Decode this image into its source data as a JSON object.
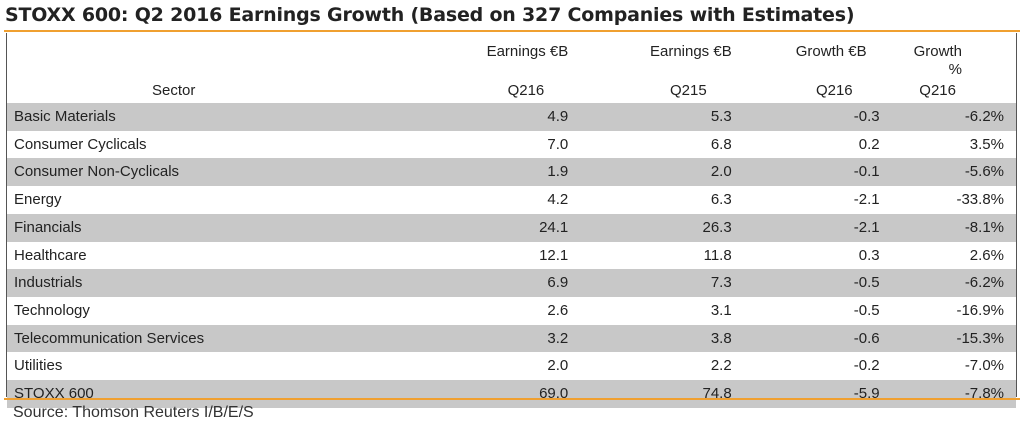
{
  "title": "STOXX 600: Q2 2016 Earnings Growth (Based on 327 Companies with Estimates)",
  "source": "Source: Thomson Reuters I/B/E/S",
  "colors": {
    "accent": "#f0a030",
    "row_shade": "#c8c8c8"
  },
  "chart_data": {
    "type": "table",
    "title": "STOXX 600: Q2 2016 Earnings Growth (Based on 327 Companies with Estimates)",
    "headers": {
      "sector": "Sector",
      "col1_line1": "Earnings €B",
      "col1_line2": "Q216",
      "col2_line1": "Earnings €B",
      "col2_line2": "Q215",
      "col3_line1": "Growth €B",
      "col3_line2": "Q216",
      "col4_line1": "Growth %",
      "col4_line2": "Q216"
    },
    "rows": [
      {
        "sector": "Basic Materials",
        "earnings_q216": "4.9",
        "earnings_q215": "5.3",
        "growth_b": "-0.3",
        "growth_pct": "-6.2%"
      },
      {
        "sector": "Consumer Cyclicals",
        "earnings_q216": "7.0",
        "earnings_q215": "6.8",
        "growth_b": "0.2",
        "growth_pct": "3.5%"
      },
      {
        "sector": "Consumer Non-Cyclicals",
        "earnings_q216": "1.9",
        "earnings_q215": "2.0",
        "growth_b": "-0.1",
        "growth_pct": "-5.6%"
      },
      {
        "sector": "Energy",
        "earnings_q216": "4.2",
        "earnings_q215": "6.3",
        "growth_b": "-2.1",
        "growth_pct": "-33.8%"
      },
      {
        "sector": "Financials",
        "earnings_q216": "24.1",
        "earnings_q215": "26.3",
        "growth_b": "-2.1",
        "growth_pct": "-8.1%"
      },
      {
        "sector": "Healthcare",
        "earnings_q216": "12.1",
        "earnings_q215": "11.8",
        "growth_b": "0.3",
        "growth_pct": "2.6%"
      },
      {
        "sector": "Industrials",
        "earnings_q216": "6.9",
        "earnings_q215": "7.3",
        "growth_b": "-0.5",
        "growth_pct": "-6.2%"
      },
      {
        "sector": "Technology",
        "earnings_q216": "2.6",
        "earnings_q215": "3.1",
        "growth_b": "-0.5",
        "growth_pct": "-16.9%"
      },
      {
        "sector": "Telecommunication Services",
        "earnings_q216": "3.2",
        "earnings_q215": "3.8",
        "growth_b": "-0.6",
        "growth_pct": "-15.3%"
      },
      {
        "sector": "Utilities",
        "earnings_q216": "2.0",
        "earnings_q215": "2.2",
        "growth_b": "-0.2",
        "growth_pct": "-7.0%"
      }
    ],
    "total": {
      "sector": "STOXX 600",
      "earnings_q216": "69.0",
      "earnings_q215": "74.8",
      "growth_b": "-5.9",
      "growth_pct": "-7.8%"
    }
  }
}
